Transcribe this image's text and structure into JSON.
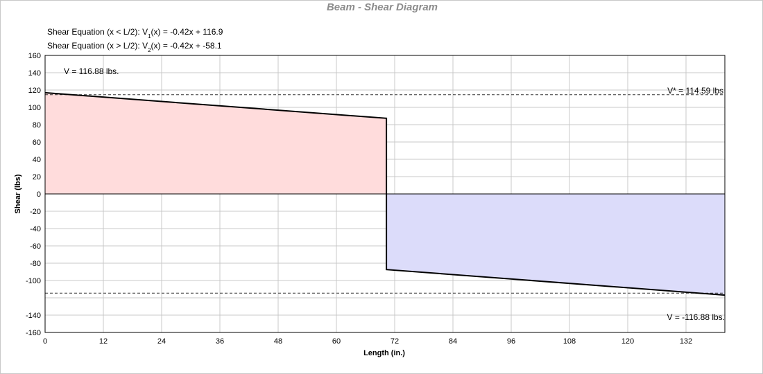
{
  "chart_data": {
    "type": "area",
    "title": "Beam - Shear Diagram",
    "xlabel": "Length (in.)",
    "ylabel": "Shear (lbs)",
    "xlim": [
      0,
      140
    ],
    "ylim": [
      -160,
      160
    ],
    "x_ticks": [
      0,
      12,
      24,
      36,
      48,
      60,
      72,
      84,
      96,
      108,
      120,
      132
    ],
    "y_ticks": [
      160,
      140,
      120,
      100,
      80,
      60,
      40,
      20,
      0,
      -20,
      -40,
      -60,
      -80,
      -100,
      -120,
      -140,
      -160
    ],
    "y_tick_labels": [
      "160",
      "140",
      "120",
      "100",
      "80",
      "60",
      "40",
      "20",
      "0",
      "-20",
      "-40",
      "-60",
      "-80",
      "-100",
      "",
      "-140",
      "-160"
    ],
    "grid": true,
    "equations": {
      "eq1_prefix": "Shear Equation  (x < L/2):  V",
      "eq1_sub": "1",
      "eq1_suffix": "(x) = -0.42x + 116.9",
      "eq2_prefix": "Shear Equation  (x > L/2):  V",
      "eq2_sub": "2",
      "eq2_suffix": "(x) = -0.42x + -58.1"
    },
    "series": [
      {
        "segment": "positive",
        "x": [
          0,
          70.3,
          70.3
        ],
        "y": [
          116.88,
          87.35,
          0
        ],
        "fill_color": "#ffdcdc"
      },
      {
        "segment": "negative",
        "x": [
          70.3,
          70.3,
          140
        ],
        "y": [
          0,
          -87.35,
          -116.88
        ],
        "fill_color": "#dcdcfa"
      }
    ],
    "reference_lines": [
      {
        "y": 114.59
      },
      {
        "y": -114.59
      }
    ],
    "annotations": {
      "v_max": "V = 116.88 lbs.",
      "v_star": "V* = 114.59 lbs",
      "v_min": "V = -116.88 lbs."
    },
    "colors": {
      "title": "#8c8c8c",
      "grid": "#c8c8c8",
      "line": "#000000"
    }
  }
}
